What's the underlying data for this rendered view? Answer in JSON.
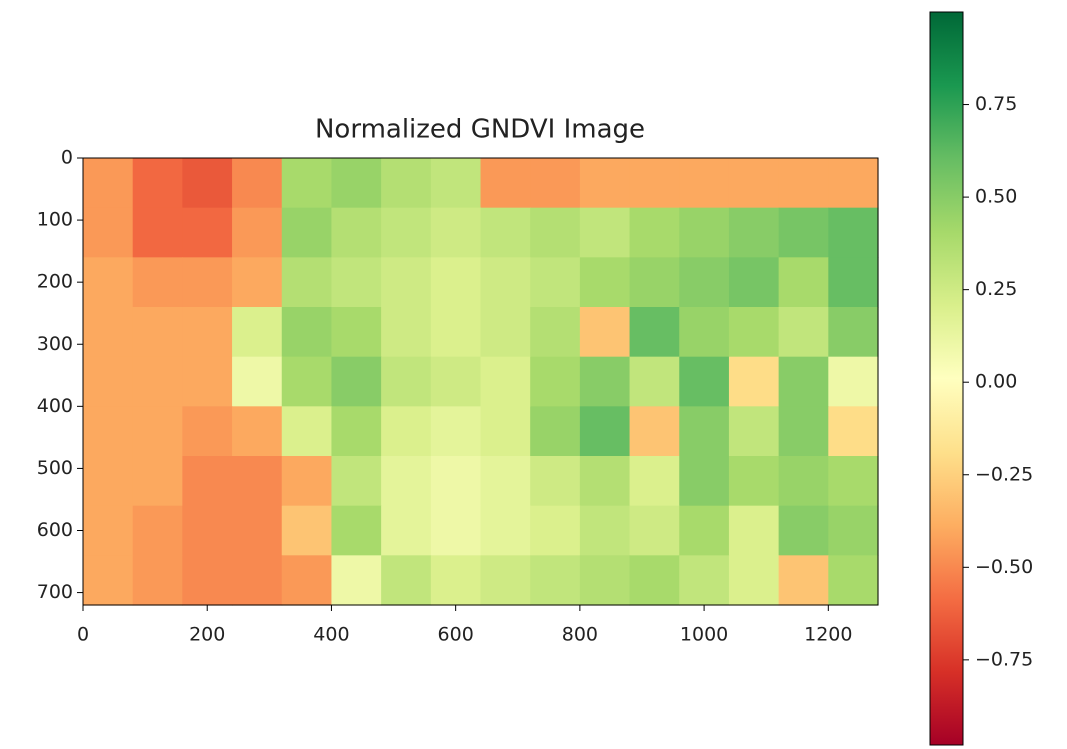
{
  "chart_data": {
    "type": "heatmap",
    "title": "Normalized GNDVI Image",
    "colormap": "RdYlGn",
    "xlim": [
      0,
      1280
    ],
    "ylim": [
      720,
      0
    ],
    "xticks": [
      0,
      200,
      400,
      600,
      800,
      1000,
      1200
    ],
    "yticks": [
      0,
      100,
      200,
      300,
      400,
      500,
      600,
      700
    ],
    "clim": [
      -0.98,
      1.0
    ],
    "cticks": [
      {
        "value": -0.75,
        "label": "−0.75"
      },
      {
        "value": -0.5,
        "label": "−0.50"
      },
      {
        "value": -0.25,
        "label": "−0.25"
      },
      {
        "value": 0,
        "label": "0.00"
      },
      0.25,
      {
        "value": 0.5,
        "label": "0.50"
      },
      0.75
    ],
    "values": [
      [
        -0.45,
        -0.6,
        -0.65,
        -0.5,
        0.4,
        0.45,
        0.35,
        0.3,
        -0.45,
        -0.45,
        -0.4,
        -0.4,
        -0.4,
        -0.4,
        -0.4,
        -0.4
      ],
      [
        -0.45,
        -0.6,
        -0.6,
        -0.45,
        0.45,
        0.35,
        0.3,
        0.25,
        0.3,
        0.35,
        0.3,
        0.4,
        0.45,
        0.5,
        0.55,
        0.6
      ],
      [
        -0.4,
        -0.45,
        -0.45,
        -0.4,
        0.35,
        0.3,
        0.25,
        0.2,
        0.25,
        0.3,
        0.4,
        0.45,
        0.5,
        0.55,
        0.4,
        0.6
      ],
      [
        -0.4,
        -0.4,
        -0.4,
        0.2,
        0.45,
        0.4,
        0.25,
        0.2,
        0.25,
        0.35,
        -0.3,
        0.6,
        0.45,
        0.4,
        0.3,
        0.5
      ],
      [
        -0.4,
        -0.4,
        -0.4,
        0.1,
        0.4,
        0.5,
        0.3,
        0.25,
        0.2,
        0.4,
        0.5,
        0.3,
        0.6,
        -0.2,
        0.5,
        0.1
      ],
      [
        -0.4,
        -0.4,
        -0.45,
        -0.4,
        0.2,
        0.4,
        0.2,
        0.15,
        0.2,
        0.45,
        0.6,
        -0.3,
        0.5,
        0.3,
        0.5,
        -0.2
      ],
      [
        -0.4,
        -0.4,
        -0.5,
        -0.5,
        -0.4,
        0.3,
        0.15,
        0.1,
        0.15,
        0.25,
        0.35,
        0.2,
        0.5,
        0.4,
        0.45,
        0.4
      ],
      [
        -0.4,
        -0.45,
        -0.5,
        -0.5,
        -0.3,
        0.4,
        0.15,
        0.1,
        0.15,
        0.2,
        0.3,
        0.25,
        0.4,
        0.2,
        0.5,
        0.45
      ],
      [
        -0.4,
        -0.45,
        -0.5,
        -0.5,
        -0.45,
        0.1,
        0.3,
        0.2,
        0.25,
        0.3,
        0.35,
        0.4,
        0.3,
        0.2,
        -0.3,
        0.4
      ]
    ]
  }
}
